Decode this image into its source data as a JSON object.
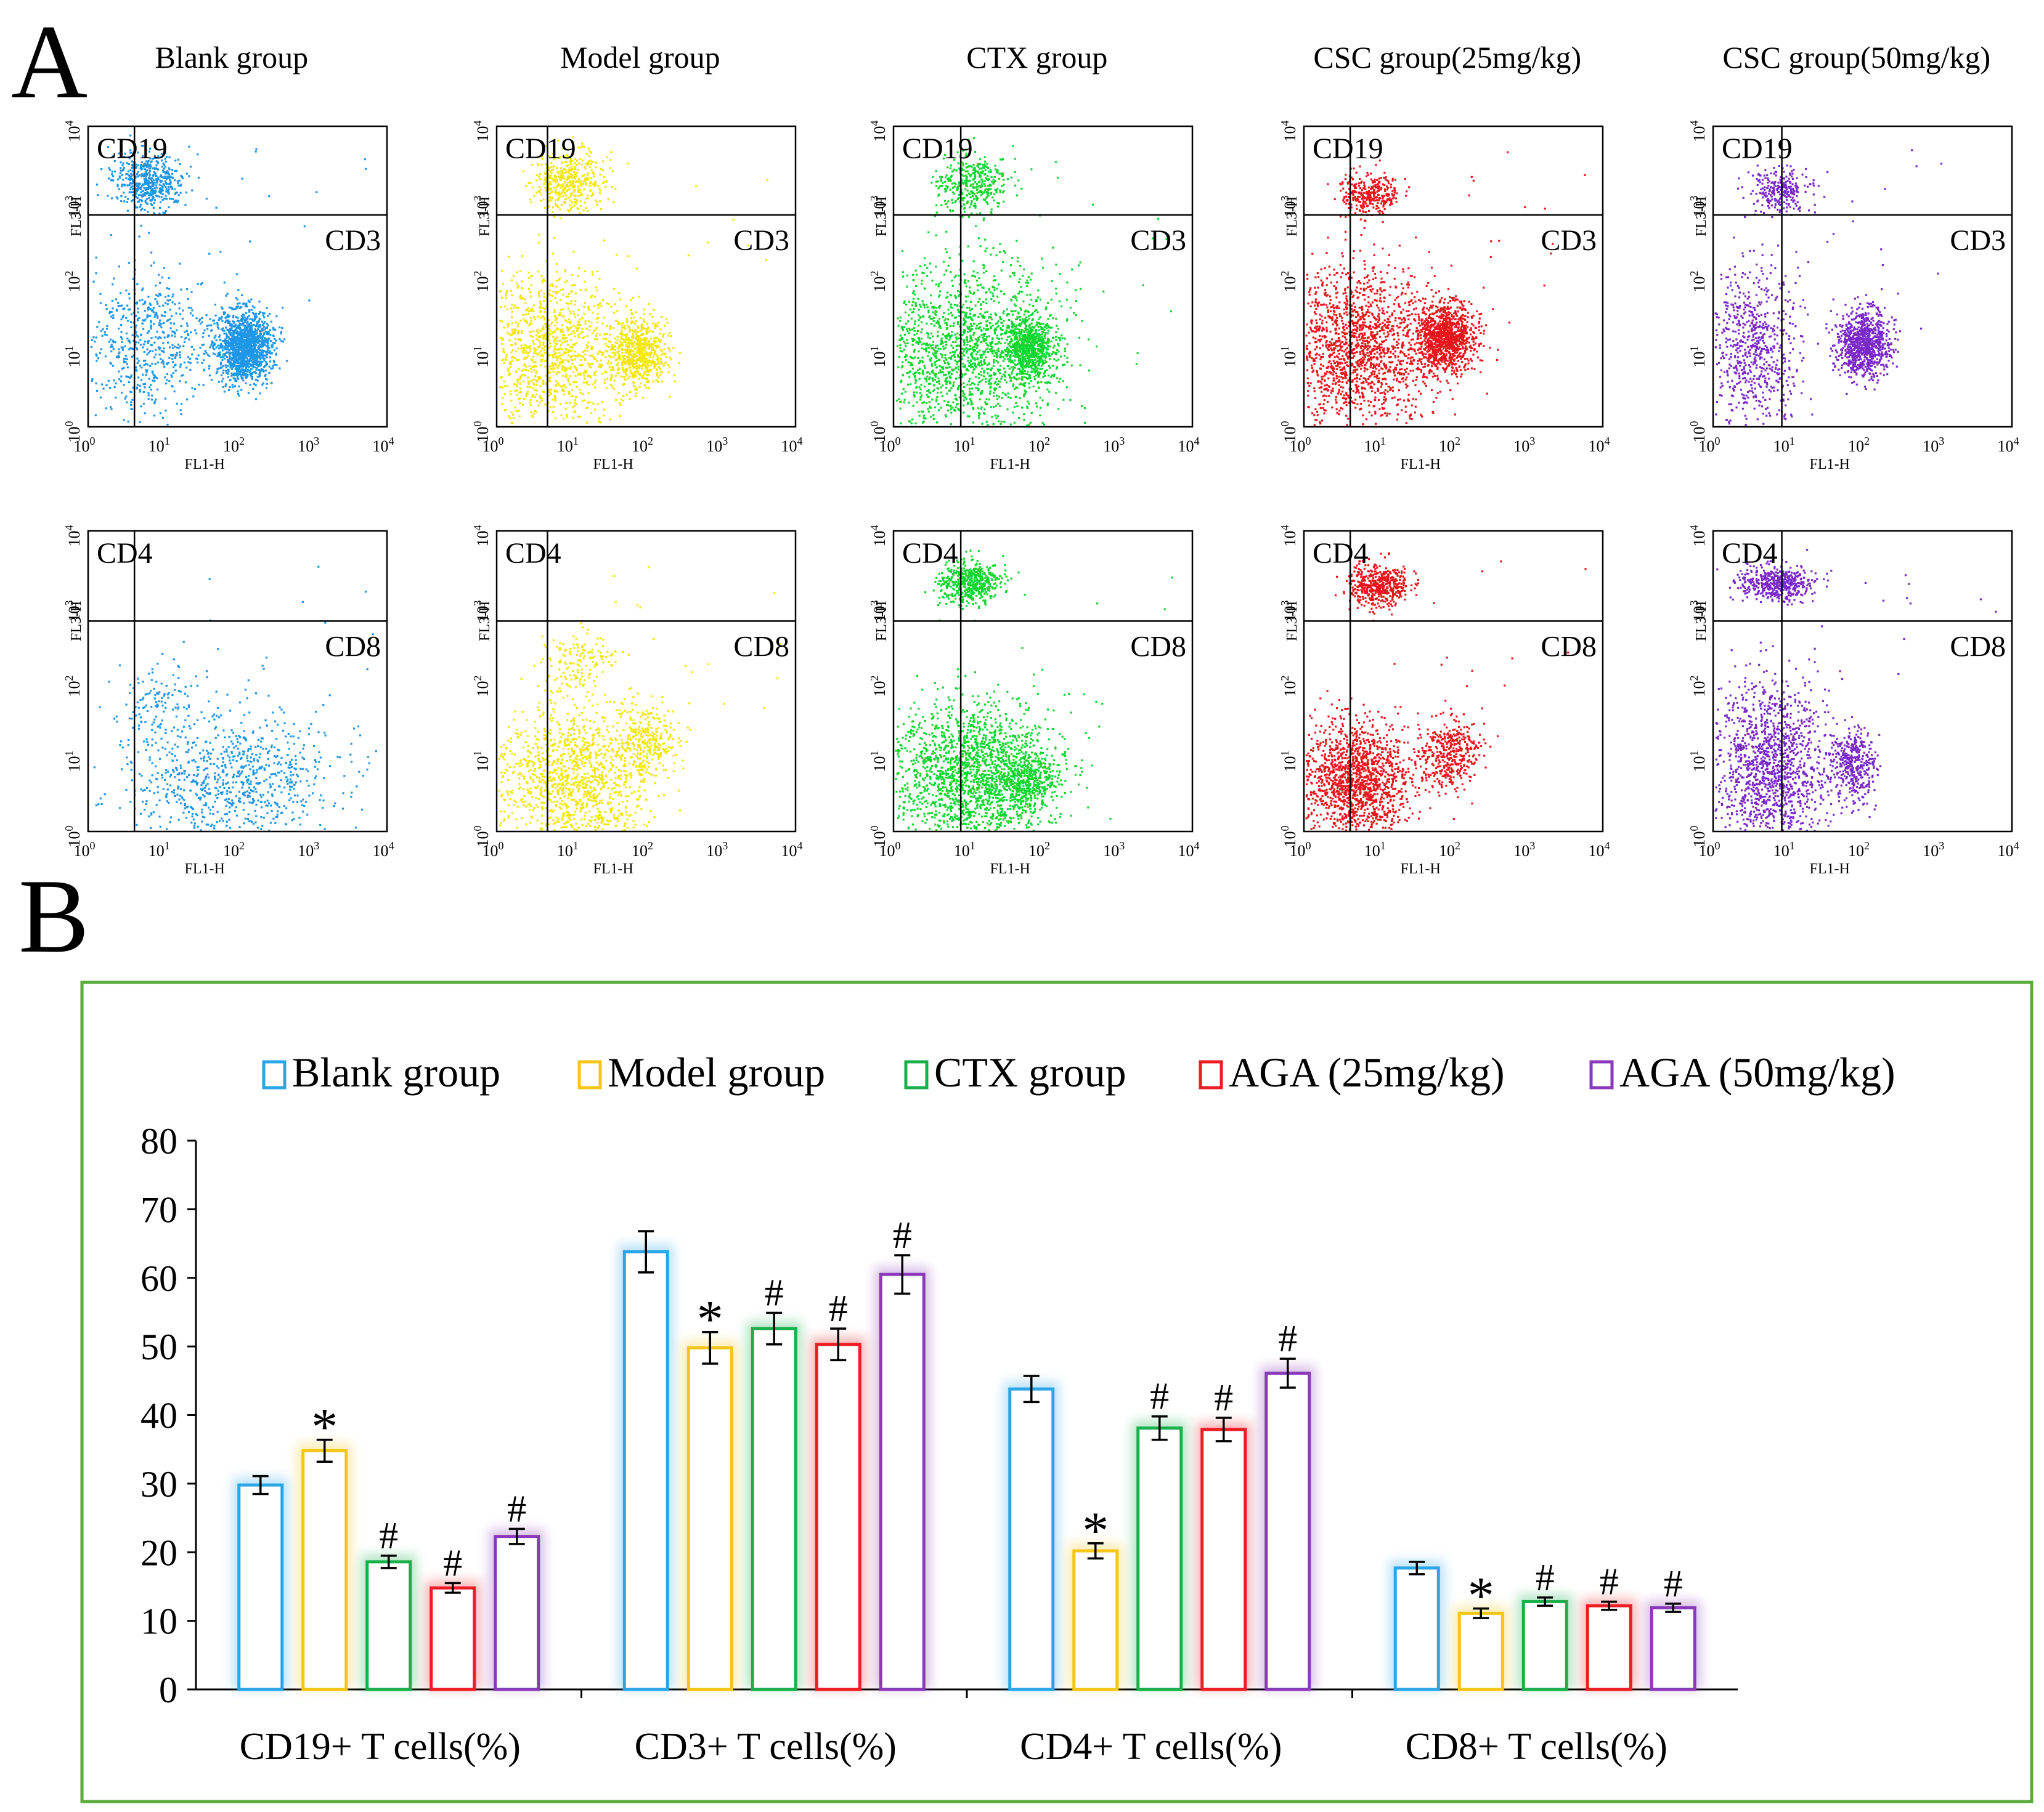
{
  "panel_labels": {
    "a": "A",
    "b": "B"
  },
  "flow": {
    "groups": [
      {
        "title": "Blank group",
        "color": "#1e96e6"
      },
      {
        "title": "Model group",
        "color": "#f2e60a"
      },
      {
        "title": "CTX group",
        "color": "#12d630"
      },
      {
        "title": "CSC group(25mg/kg)",
        "color": "#e8141c"
      },
      {
        "title": "CSC group(50mg/kg)",
        "color": "#7a28c8"
      }
    ],
    "rows": [
      {
        "upper_marker": "CD19",
        "right_marker": "CD3"
      },
      {
        "upper_marker": "CD4",
        "right_marker": "CD8"
      }
    ],
    "x_axis_title": "FL1-H",
    "y_axis_title": "FL3-H",
    "tick_base": "10",
    "tick_exponents": [
      "0",
      "1",
      "2",
      "3",
      "4"
    ]
  },
  "chart_data": {
    "type": "bar",
    "categories": [
      "CD19+  T cells(%)",
      "CD3+  T cells(%)",
      "CD4+  T cells(%)",
      "CD8+  T cells(%)"
    ],
    "series": [
      {
        "name": "Blank group",
        "color": "#2aa6e8",
        "values": [
          29.8,
          63.8,
          43.8,
          17.7
        ],
        "errors": [
          1.3,
          3.0,
          1.9,
          0.9
        ],
        "marks": [
          "",
          "",
          "",
          ""
        ]
      },
      {
        "name": "Model group",
        "color": "#f5c518",
        "values": [
          34.8,
          49.8,
          20.2,
          11.1
        ],
        "errors": [
          1.6,
          2.3,
          1.1,
          0.7
        ],
        "marks": [
          "*",
          "*",
          "*",
          "*"
        ]
      },
      {
        "name": "CTX group",
        "color": "#19b04b",
        "values": [
          18.6,
          52.6,
          38.1,
          12.8
        ],
        "errors": [
          0.9,
          2.3,
          1.7,
          0.6
        ],
        "marks": [
          "#",
          "#",
          "#",
          "#"
        ]
      },
      {
        "name": "AGA (25mg/kg)",
        "color": "#ee1c24",
        "values": [
          14.8,
          50.3,
          37.9,
          12.2
        ],
        "errors": [
          0.7,
          2.3,
          1.7,
          0.6
        ],
        "marks": [
          "#",
          "#",
          "#",
          "#"
        ]
      },
      {
        "name": "AGA (50mg/kg)",
        "color": "#8a3ab9",
        "values": [
          22.3,
          60.5,
          46.1,
          11.9
        ],
        "errors": [
          1.1,
          2.8,
          2.1,
          0.6
        ],
        "marks": [
          "#",
          "#",
          "#",
          "#"
        ]
      }
    ],
    "y_ticks": [
      "0",
      "10",
      "20",
      "30",
      "40",
      "50",
      "60",
      "70",
      "80"
    ],
    "ylim": [
      0,
      80
    ],
    "xlabel": "",
    "ylabel": "",
    "legend_position": "top",
    "frame_color": "#5aab3a"
  }
}
